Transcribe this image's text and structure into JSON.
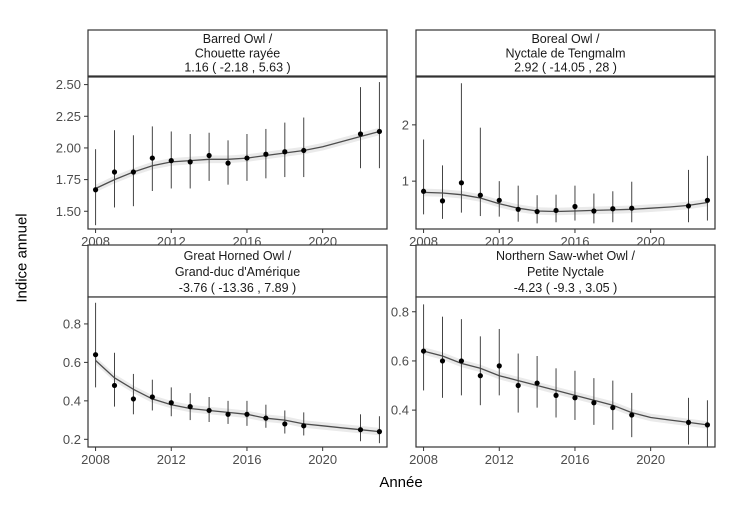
{
  "figure": {
    "ylabel": "Indice annuel",
    "xlabel": "Année"
  },
  "chart_data": [
    {
      "type": "scatter",
      "strip_line1": "Barred Owl /",
      "strip_line2": "Chouette rayée",
      "strip_line3": "1.16  ( -2.18 ,  5.63 )",
      "xlim": [
        2007.6,
        2023.4
      ],
      "ylim": [
        1.36,
        2.56
      ],
      "xticks": [
        "2008",
        "2012",
        "2016",
        "2020"
      ],
      "yticks": [
        "1.50",
        "1.75",
        "2.00",
        "2.25",
        "2.50"
      ],
      "points": {
        "x": [
          2008,
          2009,
          2010,
          2011,
          2012,
          2013,
          2014,
          2015,
          2016,
          2017,
          2018,
          2019,
          2022,
          2023
        ],
        "y": [
          1.67,
          1.81,
          1.81,
          1.92,
          1.9,
          1.89,
          1.94,
          1.88,
          1.92,
          1.95,
          1.97,
          1.98,
          2.11,
          2.13
        ],
        "lower": [
          1.39,
          1.53,
          1.54,
          1.66,
          1.68,
          1.68,
          1.74,
          1.71,
          1.74,
          1.76,
          1.77,
          1.77,
          1.84,
          1.84
        ],
        "upper": [
          1.99,
          2.14,
          2.1,
          2.17,
          2.13,
          2.11,
          2.12,
          2.06,
          2.11,
          2.15,
          2.2,
          2.24,
          2.48,
          2.52
        ]
      },
      "trend": {
        "x": [
          2008,
          2009,
          2010,
          2011,
          2012,
          2013,
          2014,
          2015,
          2016,
          2017,
          2018,
          2019,
          2020,
          2021,
          2022,
          2023
        ],
        "y": [
          1.68,
          1.75,
          1.81,
          1.86,
          1.89,
          1.9,
          1.91,
          1.91,
          1.92,
          1.94,
          1.96,
          1.98,
          2.01,
          2.05,
          2.09,
          2.13
        ]
      }
    },
    {
      "type": "scatter",
      "strip_line1": "Boreal Owl /",
      "strip_line2": "Nyctale de Tengmalm",
      "strip_line3": "2.92  ( -14.05 ,  28 )",
      "xlim": [
        2007.6,
        2023.4
      ],
      "ylim": [
        0.15,
        2.85
      ],
      "xticks": [
        "2008",
        "2012",
        "2016",
        "2020"
      ],
      "yticks": [
        "1",
        "2"
      ],
      "points": {
        "x": [
          2008,
          2009,
          2010,
          2011,
          2012,
          2013,
          2014,
          2015,
          2016,
          2017,
          2018,
          2019,
          2022,
          2023
        ],
        "y": [
          0.82,
          0.65,
          0.97,
          0.75,
          0.66,
          0.5,
          0.46,
          0.48,
          0.55,
          0.47,
          0.51,
          0.52,
          0.56,
          0.66
        ],
        "lower": [
          0.41,
          0.33,
          0.44,
          0.38,
          0.37,
          0.28,
          0.25,
          0.27,
          0.3,
          0.25,
          0.27,
          0.27,
          0.27,
          0.3
        ],
        "upper": [
          1.74,
          1.28,
          2.74,
          1.95,
          1.0,
          0.92,
          0.75,
          0.76,
          0.92,
          0.78,
          0.82,
          0.99,
          1.2,
          1.45
        ]
      },
      "trend": {
        "x": [
          2008,
          2009,
          2010,
          2011,
          2012,
          2013,
          2014,
          2015,
          2016,
          2017,
          2018,
          2019,
          2020,
          2021,
          2022,
          2023
        ],
        "y": [
          0.8,
          0.79,
          0.76,
          0.7,
          0.6,
          0.52,
          0.47,
          0.46,
          0.47,
          0.48,
          0.49,
          0.5,
          0.52,
          0.54,
          0.57,
          0.62
        ]
      }
    },
    {
      "type": "scatter",
      "strip_line1": "Great Horned Owl /",
      "strip_line2": "Grand-duc d'Amérique",
      "strip_line3": "-3.76  ( -13.36 ,  7.89 )",
      "xlim": [
        2007.6,
        2023.4
      ],
      "ylim": [
        0.16,
        0.94
      ],
      "xticks": [
        "2008",
        "2012",
        "2016",
        "2020"
      ],
      "yticks": [
        "0.2",
        "0.4",
        "0.6",
        "0.8"
      ],
      "points": {
        "x": [
          2008,
          2009,
          2010,
          2011,
          2012,
          2013,
          2014,
          2015,
          2016,
          2017,
          2018,
          2019,
          2022,
          2023
        ],
        "y": [
          0.64,
          0.48,
          0.41,
          0.42,
          0.39,
          0.37,
          0.35,
          0.33,
          0.33,
          0.31,
          0.28,
          0.27,
          0.25,
          0.24
        ],
        "lower": [
          0.47,
          0.37,
          0.33,
          0.35,
          0.32,
          0.3,
          0.29,
          0.28,
          0.27,
          0.26,
          0.23,
          0.22,
          0.19,
          0.18
        ],
        "upper": [
          0.91,
          0.65,
          0.54,
          0.51,
          0.47,
          0.44,
          0.42,
          0.4,
          0.4,
          0.38,
          0.35,
          0.34,
          0.33,
          0.32
        ]
      },
      "trend": {
        "x": [
          2008,
          2009,
          2010,
          2011,
          2012,
          2013,
          2014,
          2015,
          2016,
          2017,
          2018,
          2019,
          2020,
          2021,
          2022,
          2023
        ],
        "y": [
          0.61,
          0.52,
          0.46,
          0.41,
          0.38,
          0.36,
          0.35,
          0.34,
          0.33,
          0.31,
          0.3,
          0.28,
          0.27,
          0.26,
          0.25,
          0.24
        ]
      }
    },
    {
      "type": "scatter",
      "strip_line1": "Northern Saw-whet Owl /",
      "strip_line2": "Petite Nyctale",
      "strip_line3": "-4.23  ( -9.3 ,  3.05 )",
      "xlim": [
        2007.6,
        2023.4
      ],
      "ylim": [
        0.25,
        0.86
      ],
      "xticks": [
        "2008",
        "2012",
        "2016",
        "2020"
      ],
      "yticks": [
        "0.4",
        "0.6",
        "0.8"
      ],
      "points": {
        "x": [
          2008,
          2009,
          2010,
          2011,
          2012,
          2013,
          2014,
          2015,
          2016,
          2017,
          2018,
          2019,
          2022,
          2023
        ],
        "y": [
          0.64,
          0.6,
          0.6,
          0.54,
          0.58,
          0.5,
          0.51,
          0.46,
          0.45,
          0.43,
          0.41,
          0.38,
          0.35,
          0.34
        ],
        "lower": [
          0.48,
          0.45,
          0.46,
          0.42,
          0.46,
          0.39,
          0.41,
          0.37,
          0.36,
          0.34,
          0.32,
          0.29,
          0.26,
          0.25
        ],
        "upper": [
          0.83,
          0.78,
          0.77,
          0.7,
          0.73,
          0.63,
          0.62,
          0.57,
          0.56,
          0.53,
          0.52,
          0.47,
          0.45,
          0.44
        ]
      },
      "trend": {
        "x": [
          2008,
          2009,
          2010,
          2011,
          2012,
          2013,
          2014,
          2015,
          2016,
          2017,
          2018,
          2019,
          2020,
          2021,
          2022,
          2023
        ],
        "y": [
          0.64,
          0.62,
          0.59,
          0.57,
          0.54,
          0.52,
          0.5,
          0.48,
          0.46,
          0.44,
          0.42,
          0.39,
          0.37,
          0.36,
          0.35,
          0.34
        ]
      }
    }
  ]
}
